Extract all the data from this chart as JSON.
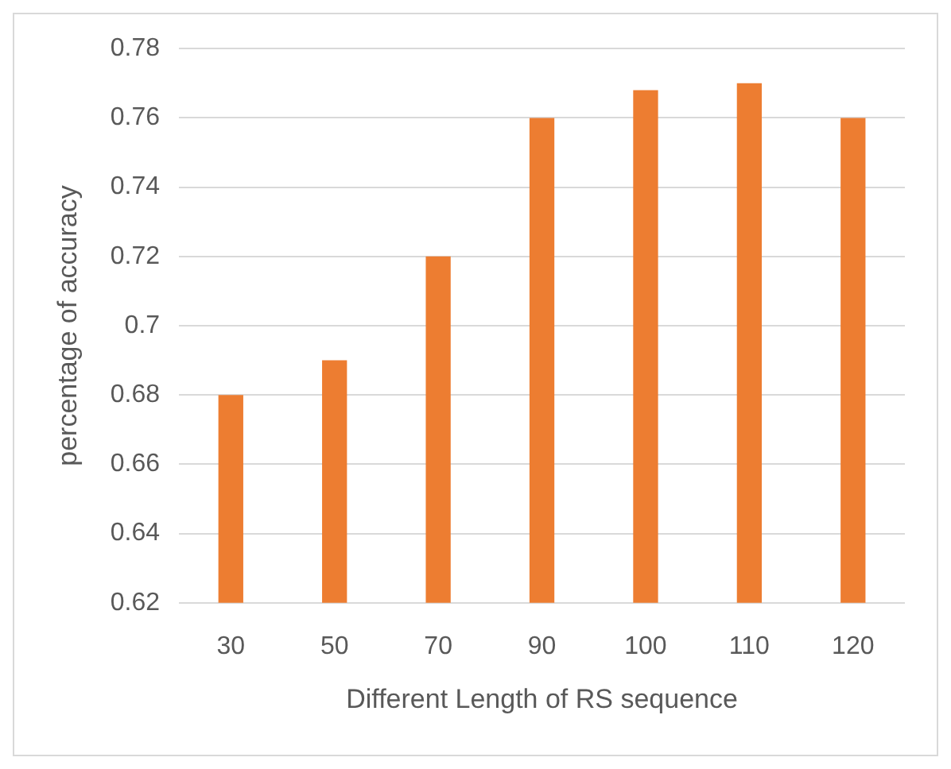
{
  "chart_data": {
    "type": "bar",
    "xlabel": "Different Length of RS sequence",
    "ylabel": "percentage of accuracy",
    "categories": [
      "30",
      "50",
      "70",
      "90",
      "100",
      "110",
      "120"
    ],
    "values": [
      0.68,
      0.69,
      0.72,
      0.76,
      0.768,
      0.77,
      0.76
    ],
    "color": "#ed7d31",
    "ylim": [
      0.62,
      0.78
    ],
    "yticks": [
      0.62,
      0.64,
      0.66,
      0.68,
      0.7,
      0.72,
      0.74,
      0.76,
      0.78
    ],
    "grid": "y",
    "legend": false
  }
}
